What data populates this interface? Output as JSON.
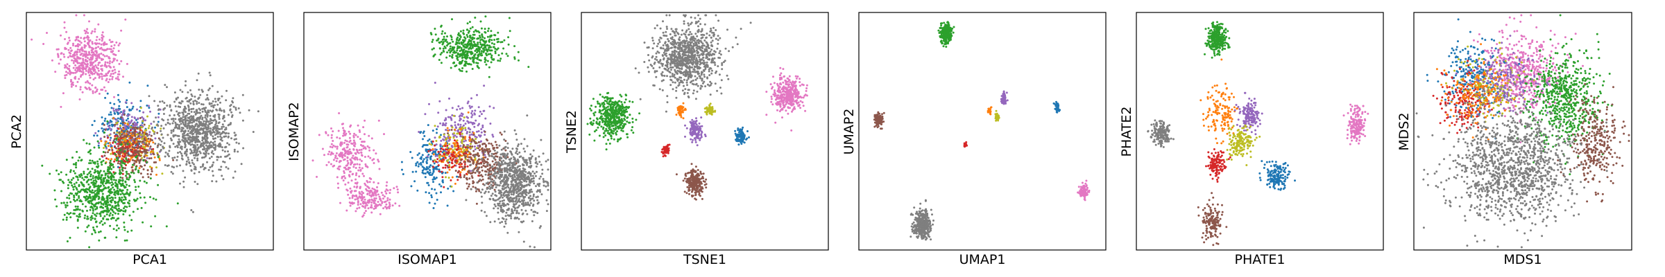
{
  "chart_data": [
    {
      "type": "scatter",
      "xlabel": "PCA1",
      "ylabel": "PCA2",
      "clusters": [
        {
          "color": "#e377c2",
          "cx": 0.25,
          "cy": 0.8,
          "sx": 0.06,
          "sy": 0.065,
          "n": 500
        },
        {
          "color": "#1f77b4",
          "cx": 0.38,
          "cy": 0.52,
          "sx": 0.05,
          "sy": 0.06,
          "n": 200
        },
        {
          "color": "#9467bd",
          "cx": 0.42,
          "cy": 0.5,
          "sx": 0.05,
          "sy": 0.055,
          "n": 160
        },
        {
          "color": "#bcbd22",
          "cx": 0.45,
          "cy": 0.46,
          "sx": 0.05,
          "sy": 0.05,
          "n": 120
        },
        {
          "color": "#ff7f0e",
          "cx": 0.42,
          "cy": 0.44,
          "sx": 0.05,
          "sy": 0.05,
          "n": 120
        },
        {
          "color": "#d62728",
          "cx": 0.4,
          "cy": 0.42,
          "sx": 0.04,
          "sy": 0.04,
          "n": 100
        },
        {
          "color": "#8c564b",
          "cx": 0.43,
          "cy": 0.43,
          "sx": 0.05,
          "sy": 0.06,
          "n": 220
        },
        {
          "color": "#7f7f7f",
          "cx": 0.7,
          "cy": 0.5,
          "sx": 0.075,
          "sy": 0.085,
          "n": 900
        },
        {
          "color": "#2ca02c",
          "cx": 0.3,
          "cy": 0.24,
          "sx": 0.08,
          "sy": 0.08,
          "n": 750
        }
      ]
    },
    {
      "type": "scatter",
      "xlabel": "ISOMAP1",
      "ylabel": "ISOMAP2",
      "clusters": [
        {
          "color": "#2ca02c",
          "cx": 0.68,
          "cy": 0.86,
          "sx": 0.07,
          "sy": 0.045,
          "n": 450
        },
        {
          "color": "#e377c2",
          "cx": 0.18,
          "cy": 0.4,
          "sx": 0.05,
          "sy": 0.06,
          "n": 250
        },
        {
          "color": "#e377c2",
          "cx": 0.26,
          "cy": 0.22,
          "sx": 0.05,
          "sy": 0.04,
          "n": 200
        },
        {
          "color": "#1f77b4",
          "cx": 0.52,
          "cy": 0.36,
          "sx": 0.04,
          "sy": 0.07,
          "n": 180
        },
        {
          "color": "#9467bd",
          "cx": 0.64,
          "cy": 0.5,
          "sx": 0.06,
          "sy": 0.07,
          "n": 220
        },
        {
          "color": "#bcbd22",
          "cx": 0.62,
          "cy": 0.44,
          "sx": 0.05,
          "sy": 0.05,
          "n": 100
        },
        {
          "color": "#ff7f0e",
          "cx": 0.63,
          "cy": 0.4,
          "sx": 0.05,
          "sy": 0.05,
          "n": 100
        },
        {
          "color": "#d62728",
          "cx": 0.6,
          "cy": 0.38,
          "sx": 0.04,
          "sy": 0.04,
          "n": 90
        },
        {
          "color": "#8c564b",
          "cx": 0.72,
          "cy": 0.36,
          "sx": 0.05,
          "sy": 0.06,
          "n": 250
        },
        {
          "color": "#7f7f7f",
          "cx": 0.86,
          "cy": 0.28,
          "sx": 0.06,
          "sy": 0.08,
          "n": 800
        }
      ]
    },
    {
      "type": "scatter",
      "xlabel": "TSNE1",
      "ylabel": "TSNE2",
      "clusters": [
        {
          "color": "#7f7f7f",
          "cx": 0.42,
          "cy": 0.82,
          "sx": 0.07,
          "sy": 0.07,
          "n": 900
        },
        {
          "color": "#2ca02c",
          "cx": 0.12,
          "cy": 0.56,
          "sx": 0.035,
          "sy": 0.045,
          "n": 450
        },
        {
          "color": "#e377c2",
          "cx": 0.84,
          "cy": 0.66,
          "sx": 0.03,
          "sy": 0.035,
          "n": 350
        },
        {
          "color": "#ff7f0e",
          "cx": 0.4,
          "cy": 0.59,
          "sx": 0.008,
          "sy": 0.012,
          "n": 50
        },
        {
          "color": "#bcbd22",
          "cx": 0.52,
          "cy": 0.59,
          "sx": 0.01,
          "sy": 0.012,
          "n": 60
        },
        {
          "color": "#9467bd",
          "cx": 0.46,
          "cy": 0.5,
          "sx": 0.015,
          "sy": 0.022,
          "n": 120
        },
        {
          "color": "#1f77b4",
          "cx": 0.65,
          "cy": 0.48,
          "sx": 0.012,
          "sy": 0.015,
          "n": 100
        },
        {
          "color": "#d62728",
          "cx": 0.34,
          "cy": 0.42,
          "sx": 0.008,
          "sy": 0.012,
          "n": 50
        },
        {
          "color": "#8c564b",
          "cx": 0.46,
          "cy": 0.28,
          "sx": 0.018,
          "sy": 0.03,
          "n": 220
        }
      ]
    },
    {
      "type": "scatter",
      "xlabel": "UMAP1",
      "ylabel": "UMAP2",
      "clusters": [
        {
          "color": "#2ca02c",
          "cx": 0.35,
          "cy": 0.92,
          "sx": 0.012,
          "sy": 0.02,
          "n": 250
        },
        {
          "color": "#8c564b",
          "cx": 0.07,
          "cy": 0.55,
          "sx": 0.008,
          "sy": 0.015,
          "n": 90
        },
        {
          "color": "#9467bd",
          "cx": 0.59,
          "cy": 0.64,
          "sx": 0.007,
          "sy": 0.012,
          "n": 60
        },
        {
          "color": "#ff7f0e",
          "cx": 0.53,
          "cy": 0.59,
          "sx": 0.004,
          "sy": 0.008,
          "n": 20
        },
        {
          "color": "#bcbd22",
          "cx": 0.56,
          "cy": 0.56,
          "sx": 0.005,
          "sy": 0.01,
          "n": 30
        },
        {
          "color": "#1f77b4",
          "cx": 0.81,
          "cy": 0.6,
          "sx": 0.005,
          "sy": 0.01,
          "n": 40
        },
        {
          "color": "#d62728",
          "cx": 0.43,
          "cy": 0.44,
          "sx": 0.003,
          "sy": 0.006,
          "n": 15
        },
        {
          "color": "#e377c2",
          "cx": 0.92,
          "cy": 0.24,
          "sx": 0.01,
          "sy": 0.016,
          "n": 90
        },
        {
          "color": "#7f7f7f",
          "cx": 0.25,
          "cy": 0.1,
          "sx": 0.018,
          "sy": 0.03,
          "n": 350
        }
      ]
    },
    {
      "type": "scatter",
      "xlabel": "PHATE1",
      "ylabel": "PHATE2",
      "clusters": [
        {
          "color": "#2ca02c",
          "cx": 0.32,
          "cy": 0.9,
          "sx": 0.02,
          "sy": 0.03,
          "n": 300
        },
        {
          "color": "#ff7f0e",
          "cx": 0.34,
          "cy": 0.58,
          "sx": 0.035,
          "sy": 0.06,
          "n": 140
        },
        {
          "color": "#9467bd",
          "cx": 0.46,
          "cy": 0.57,
          "sx": 0.02,
          "sy": 0.03,
          "n": 150
        },
        {
          "color": "#bcbd22",
          "cx": 0.42,
          "cy": 0.45,
          "sx": 0.025,
          "sy": 0.03,
          "n": 150
        },
        {
          "color": "#7f7f7f",
          "cx": 0.09,
          "cy": 0.49,
          "sx": 0.02,
          "sy": 0.025,
          "n": 160
        },
        {
          "color": "#d62728",
          "cx": 0.32,
          "cy": 0.36,
          "sx": 0.02,
          "sy": 0.03,
          "n": 120
        },
        {
          "color": "#1f77b4",
          "cx": 0.57,
          "cy": 0.31,
          "sx": 0.025,
          "sy": 0.03,
          "n": 160
        },
        {
          "color": "#8c564b",
          "cx": 0.3,
          "cy": 0.11,
          "sx": 0.02,
          "sy": 0.04,
          "n": 150
        },
        {
          "color": "#e377c2",
          "cx": 0.9,
          "cy": 0.53,
          "sx": 0.018,
          "sy": 0.04,
          "n": 160
        }
      ]
    },
    {
      "type": "scatter",
      "xlabel": "MDS1",
      "ylabel": "MDS2",
      "clusters": [
        {
          "color": "#e377c2",
          "cx": 0.5,
          "cy": 0.76,
          "sx": 0.09,
          "sy": 0.08,
          "n": 500
        },
        {
          "color": "#2ca02c",
          "cx": 0.7,
          "cy": 0.64,
          "sx": 0.08,
          "sy": 0.1,
          "n": 600
        },
        {
          "color": "#1f77b4",
          "cx": 0.27,
          "cy": 0.72,
          "sx": 0.07,
          "sy": 0.08,
          "n": 250
        },
        {
          "color": "#d62728",
          "cx": 0.22,
          "cy": 0.64,
          "sx": 0.06,
          "sy": 0.06,
          "n": 180
        },
        {
          "color": "#bcbd22",
          "cx": 0.35,
          "cy": 0.7,
          "sx": 0.07,
          "sy": 0.07,
          "n": 150
        },
        {
          "color": "#9467bd",
          "cx": 0.42,
          "cy": 0.72,
          "sx": 0.08,
          "sy": 0.07,
          "n": 180
        },
        {
          "color": "#ff7f0e",
          "cx": 0.3,
          "cy": 0.66,
          "sx": 0.07,
          "sy": 0.07,
          "n": 160
        },
        {
          "color": "#8c564b",
          "cx": 0.84,
          "cy": 0.45,
          "sx": 0.06,
          "sy": 0.09,
          "n": 300
        },
        {
          "color": "#7f7f7f",
          "cx": 0.45,
          "cy": 0.35,
          "sx": 0.15,
          "sy": 0.12,
          "n": 1200
        }
      ]
    }
  ]
}
